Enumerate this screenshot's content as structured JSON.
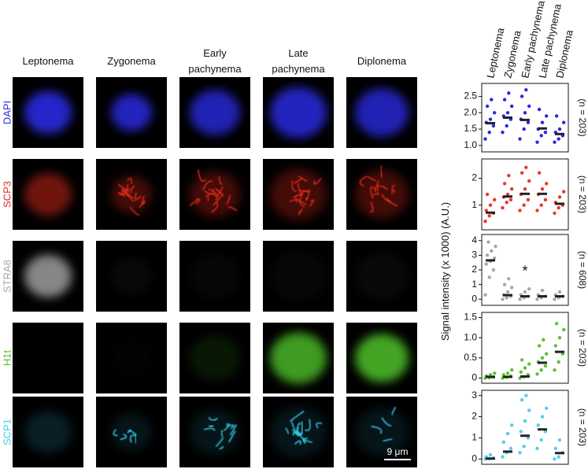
{
  "figure": {
    "stage_headers": [
      [
        "Leptonema"
      ],
      [
        "Zygonema"
      ],
      [
        "Early",
        "pachynema"
      ],
      [
        "Late",
        "pachynema"
      ],
      [
        "Diplonema"
      ]
    ],
    "rows": [
      {
        "label": "DAPI",
        "color": "#2a2ae0"
      },
      {
        "label": "SCP3",
        "color": "#e02a1e"
      },
      {
        "label": "STRA8",
        "color": "#a8a8a8"
      },
      {
        "label": "H1t",
        "color": "#4fc22a"
      },
      {
        "label": "SCP1",
        "color": "#38d0f0"
      }
    ],
    "scale_bar": "9 μm"
  },
  "chart_data": {
    "type": "dot",
    "categories": [
      "Leptonema",
      "Zygonema",
      "Early pachynema",
      "Late pachynema",
      "Diplonema"
    ],
    "y_label": "Signal intensity (x 1000) (A.U.)",
    "panels": [
      {
        "color": "#2a2ae0",
        "n_label": "(n = 203)",
        "ylim": [
          0.9,
          2.8
        ],
        "yticks": [
          {
            "value": 1,
            "label": "1.0"
          },
          1.5,
          {
            "value": 2,
            "label": "2.0"
          },
          2.5
        ],
        "medians": [
          1.68,
          1.85,
          1.78,
          1.52,
          1.35
        ],
        "points": [
          [
            1.2,
            1.4,
            1.6,
            1.7,
            1.8,
            2.0,
            2.2,
            2.4
          ],
          [
            1.4,
            1.6,
            1.8,
            1.9,
            2.0,
            2.2,
            2.4,
            2.6
          ],
          [
            1.2,
            1.5,
            1.7,
            1.8,
            2.0,
            2.2,
            2.5,
            2.7
          ],
          [
            1.1,
            1.3,
            1.4,
            1.5,
            1.7,
            1.9,
            2.1
          ],
          [
            1.1,
            1.2,
            1.3,
            1.4,
            1.5,
            1.7,
            1.9
          ]
        ]
      },
      {
        "color": "#e8382c",
        "n_label": "(n = 203)",
        "ylim": [
          0.2,
          2.6
        ],
        "yticks": [
          1,
          2
        ],
        "medians": [
          0.72,
          1.32,
          1.42,
          1.42,
          1.05
        ],
        "points": [
          [
            0.4,
            0.6,
            0.7,
            0.8,
            1.0,
            1.2,
            1.4
          ],
          [
            0.9,
            1.1,
            1.2,
            1.3,
            1.4,
            1.6,
            1.8,
            2.1
          ],
          [
            0.8,
            1.0,
            1.2,
            1.4,
            1.6,
            1.9,
            2.2,
            2.4
          ],
          [
            0.8,
            1.0,
            1.2,
            1.4,
            1.6,
            1.8,
            2.2
          ],
          [
            0.7,
            0.9,
            1.0,
            1.1,
            1.3,
            1.5
          ]
        ]
      },
      {
        "color": "#a8a8a8",
        "n_label": "(n = 608)",
        "ylim": [
          -0.2,
          4.2
        ],
        "yticks": [
          0,
          1,
          2,
          3,
          4
        ],
        "annotation": "*",
        "medians": [
          2.65,
          0.28,
          0.2,
          0.2,
          0.2
        ],
        "points": [
          [
            0.3,
            1.5,
            2.0,
            2.4,
            2.6,
            2.8,
            3.0,
            3.3,
            3.6,
            3.9
          ],
          [
            0.0,
            0.1,
            0.2,
            0.3,
            0.5,
            0.8,
            1.0,
            1.4
          ],
          [
            0.0,
            0.1,
            0.2,
            0.3,
            0.5,
            0.7
          ],
          [
            0.0,
            0.1,
            0.2,
            0.3,
            0.6
          ],
          [
            0.0,
            0.1,
            0.2,
            0.3,
            0.5
          ]
        ]
      },
      {
        "color": "#5cc234",
        "n_label": "(n = 203)",
        "ylim": [
          -0.05,
          1.55
        ],
        "yticks": [
          0,
          0.5,
          {
            "value": 1,
            "label": "1.0"
          },
          1.5
        ],
        "medians": [
          0.03,
          0.03,
          0.04,
          0.38,
          0.65
        ],
        "points": [
          [
            0.0,
            0.01,
            0.02,
            0.05,
            0.08,
            0.12
          ],
          [
            0.0,
            0.02,
            0.05,
            0.08,
            0.12,
            0.2
          ],
          [
            0.0,
            0.03,
            0.08,
            0.15,
            0.25,
            0.35,
            0.45
          ],
          [
            0.1,
            0.2,
            0.3,
            0.4,
            0.5,
            0.6,
            0.8,
            0.95
          ],
          [
            0.2,
            0.4,
            0.6,
            0.8,
            1.0,
            1.2,
            1.35
          ]
        ]
      },
      {
        "color": "#5cc8f0",
        "n_label": "(n = 203)",
        "ylim": [
          -0.1,
          3.1
        ],
        "yticks": [
          0,
          1,
          2,
          3
        ],
        "medians": [
          0.02,
          0.35,
          1.1,
          1.4,
          0.28
        ],
        "points": [
          [
            0.0,
            0.02,
            0.05,
            0.1,
            0.2
          ],
          [
            0.1,
            0.3,
            0.5,
            0.8,
            1.2,
            1.6
          ],
          [
            0.3,
            0.6,
            1.0,
            1.3,
            1.8,
            2.3,
            2.8,
            3.0
          ],
          [
            0.5,
            0.9,
            1.3,
            1.6,
            2.0,
            2.4
          ],
          [
            0.0,
            0.1,
            0.3,
            0.5,
            0.9
          ]
        ]
      }
    ]
  }
}
